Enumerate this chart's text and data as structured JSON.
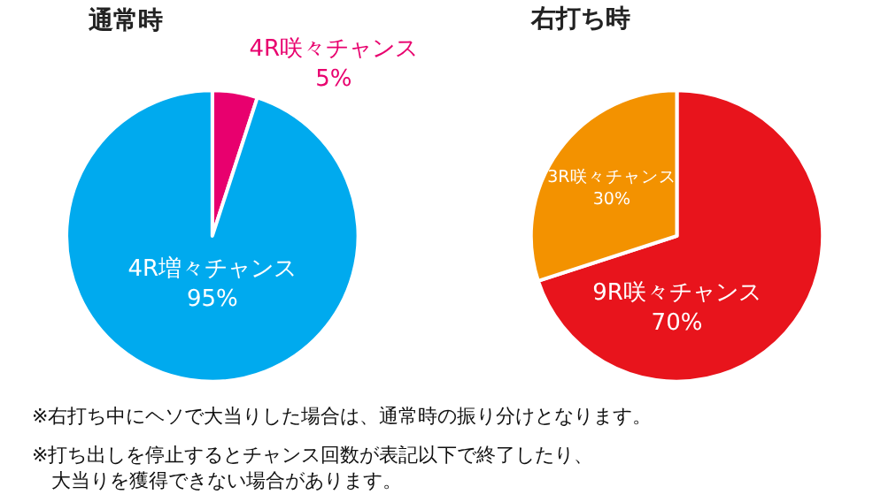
{
  "chart_data": [
    {
      "type": "pie",
      "title": "通常時",
      "categories": [
        "4R咲々チャンス",
        "4R増々チャンス"
      ],
      "values": [
        5,
        95
      ],
      "value_labels": [
        "5%",
        "95%"
      ],
      "colors": [
        "#e8006e",
        "#00aaee"
      ],
      "annotations": [
        "※右打ち中にヘソで大当りした場合は、通常時の振り分けとなります。",
        "※打ち出しを停止するとチャンス回数が表記以下で終了したり、大当りを獲得できない場合があります。"
      ]
    },
    {
      "type": "pie",
      "title": "右打ち時",
      "categories": [
        "9R咲々チャンス",
        "3R咲々チャンス"
      ],
      "values": [
        70,
        30
      ],
      "value_labels": [
        "70%",
        "30%"
      ],
      "colors": [
        "#e8141c",
        "#f39200"
      ]
    }
  ]
}
